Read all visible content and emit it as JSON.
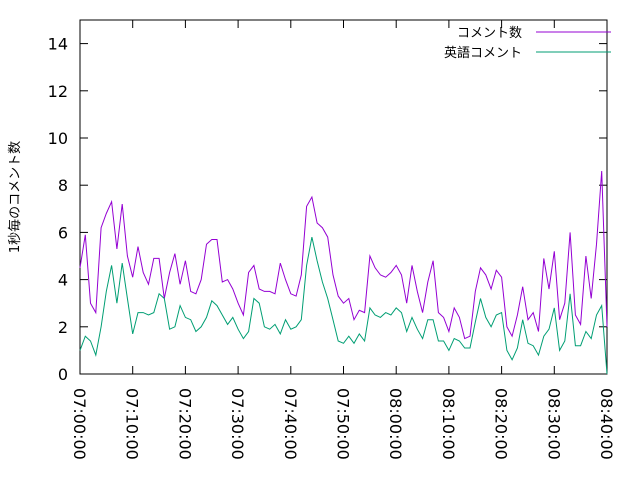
{
  "chart_data": {
    "type": "line",
    "title": "",
    "xlabel": "",
    "ylabel": "1秒毎のコメント数",
    "xlim": [
      "07:00:00",
      "08:40:00"
    ],
    "ylim": [
      0,
      15
    ],
    "x_ticks": [
      "07:00:00",
      "07:10:00",
      "07:20:00",
      "07:30:00",
      "07:40:00",
      "07:50:00",
      "08:00:00",
      "08:10:00",
      "08:20:00",
      "08:30:00",
      "08:40:00"
    ],
    "y_ticks": [
      0,
      2,
      4,
      6,
      8,
      10,
      12,
      14
    ],
    "legend_position": "top-right",
    "grid": false,
    "series": [
      {
        "name": "コメント数",
        "color": "#9400d3",
        "points": [
          [
            "07:00:00",
            4.5
          ],
          [
            "07:01:00",
            5.9
          ],
          [
            "07:02:00",
            3.0
          ],
          [
            "07:03:00",
            2.6
          ],
          [
            "07:04:00",
            6.2
          ],
          [
            "07:05:00",
            6.8
          ],
          [
            "07:06:00",
            7.3
          ],
          [
            "07:07:00",
            5.3
          ],
          [
            "07:08:00",
            7.2
          ],
          [
            "07:09:00",
            5.0
          ],
          [
            "07:10:00",
            4.1
          ],
          [
            "07:11:00",
            5.4
          ],
          [
            "07:12:00",
            4.3
          ],
          [
            "07:13:00",
            3.8
          ],
          [
            "07:14:00",
            4.9
          ],
          [
            "07:15:00",
            4.9
          ],
          [
            "07:16:00",
            3.2
          ],
          [
            "07:17:00",
            4.3
          ],
          [
            "07:18:00",
            5.1
          ],
          [
            "07:19:00",
            3.8
          ],
          [
            "07:20:00",
            4.8
          ],
          [
            "07:21:00",
            3.5
          ],
          [
            "07:22:00",
            3.4
          ],
          [
            "07:23:00",
            4.0
          ],
          [
            "07:24:00",
            5.5
          ],
          [
            "07:25:00",
            5.7
          ],
          [
            "07:26:00",
            5.7
          ],
          [
            "07:27:00",
            3.9
          ],
          [
            "07:28:00",
            4.0
          ],
          [
            "07:29:00",
            3.6
          ],
          [
            "07:30:00",
            3.0
          ],
          [
            "07:31:00",
            2.5
          ],
          [
            "07:32:00",
            4.3
          ],
          [
            "07:33:00",
            4.6
          ],
          [
            "07:34:00",
            3.6
          ],
          [
            "07:35:00",
            3.5
          ],
          [
            "07:36:00",
            3.5
          ],
          [
            "07:37:00",
            3.4
          ],
          [
            "07:38:00",
            4.7
          ],
          [
            "07:39:00",
            4.0
          ],
          [
            "07:40:00",
            3.4
          ],
          [
            "07:41:00",
            3.3
          ],
          [
            "07:42:00",
            4.2
          ],
          [
            "07:43:00",
            7.1
          ],
          [
            "07:44:00",
            7.5
          ],
          [
            "07:45:00",
            6.4
          ],
          [
            "07:46:00",
            6.2
          ],
          [
            "07:47:00",
            5.8
          ],
          [
            "07:48:00",
            4.2
          ],
          [
            "07:49:00",
            3.3
          ],
          [
            "07:50:00",
            3.0
          ],
          [
            "07:51:00",
            3.2
          ],
          [
            "07:52:00",
            2.3
          ],
          [
            "07:53:00",
            2.7
          ],
          [
            "07:54:00",
            2.6
          ],
          [
            "07:55:00",
            5.0
          ],
          [
            "07:56:00",
            4.5
          ],
          [
            "07:57:00",
            4.2
          ],
          [
            "07:58:00",
            4.1
          ],
          [
            "07:59:00",
            4.3
          ],
          [
            "08:00:00",
            4.6
          ],
          [
            "08:01:00",
            4.2
          ],
          [
            "08:02:00",
            3.0
          ],
          [
            "08:03:00",
            4.6
          ],
          [
            "08:04:00",
            3.5
          ],
          [
            "08:05:00",
            2.6
          ],
          [
            "08:06:00",
            3.9
          ],
          [
            "08:07:00",
            4.8
          ],
          [
            "08:08:00",
            2.6
          ],
          [
            "08:09:00",
            2.4
          ],
          [
            "08:10:00",
            1.8
          ],
          [
            "08:11:00",
            2.8
          ],
          [
            "08:12:00",
            2.4
          ],
          [
            "08:13:00",
            1.5
          ],
          [
            "08:14:00",
            1.6
          ],
          [
            "08:15:00",
            3.5
          ],
          [
            "08:16:00",
            4.5
          ],
          [
            "08:17:00",
            4.2
          ],
          [
            "08:18:00",
            3.6
          ],
          [
            "08:19:00",
            4.4
          ],
          [
            "08:20:00",
            4.1
          ],
          [
            "08:21:00",
            2.0
          ],
          [
            "08:22:00",
            1.6
          ],
          [
            "08:23:00",
            2.5
          ],
          [
            "08:24:00",
            3.7
          ],
          [
            "08:25:00",
            2.3
          ],
          [
            "08:26:00",
            2.6
          ],
          [
            "08:27:00",
            1.8
          ],
          [
            "08:28:00",
            4.9
          ],
          [
            "08:29:00",
            3.6
          ],
          [
            "08:30:00",
            5.2
          ],
          [
            "08:31:00",
            2.3
          ],
          [
            "08:32:00",
            3.0
          ],
          [
            "08:33:00",
            6.0
          ],
          [
            "08:34:00",
            2.5
          ],
          [
            "08:35:00",
            2.1
          ],
          [
            "08:36:00",
            5.0
          ],
          [
            "08:37:00",
            3.2
          ],
          [
            "08:38:00",
            5.5
          ],
          [
            "08:39:00",
            8.6
          ],
          [
            "08:40:00",
            2.0
          ]
        ]
      },
      {
        "name": "英語コメント",
        "color": "#009e73",
        "points": [
          [
            "07:00:00",
            1.0
          ],
          [
            "07:01:00",
            1.6
          ],
          [
            "07:02:00",
            1.4
          ],
          [
            "07:03:00",
            0.8
          ],
          [
            "07:04:00",
            2.0
          ],
          [
            "07:05:00",
            3.5
          ],
          [
            "07:06:00",
            4.6
          ],
          [
            "07:07:00",
            3.0
          ],
          [
            "07:08:00",
            4.7
          ],
          [
            "07:09:00",
            3.2
          ],
          [
            "07:10:00",
            1.7
          ],
          [
            "07:11:00",
            2.6
          ],
          [
            "07:12:00",
            2.6
          ],
          [
            "07:13:00",
            2.5
          ],
          [
            "07:14:00",
            2.6
          ],
          [
            "07:15:00",
            3.4
          ],
          [
            "07:16:00",
            3.2
          ],
          [
            "07:17:00",
            1.9
          ],
          [
            "07:18:00",
            2.0
          ],
          [
            "07:19:00",
            2.9
          ],
          [
            "07:20:00",
            2.4
          ],
          [
            "07:21:00",
            2.3
          ],
          [
            "07:22:00",
            1.8
          ],
          [
            "07:23:00",
            2.0
          ],
          [
            "07:24:00",
            2.4
          ],
          [
            "07:25:00",
            3.1
          ],
          [
            "07:26:00",
            2.9
          ],
          [
            "07:27:00",
            2.5
          ],
          [
            "07:28:00",
            2.1
          ],
          [
            "07:29:00",
            2.4
          ],
          [
            "07:30:00",
            1.9
          ],
          [
            "07:31:00",
            1.5
          ],
          [
            "07:32:00",
            1.8
          ],
          [
            "07:33:00",
            3.2
          ],
          [
            "07:34:00",
            3.0
          ],
          [
            "07:35:00",
            2.0
          ],
          [
            "07:36:00",
            1.9
          ],
          [
            "07:37:00",
            2.1
          ],
          [
            "07:38:00",
            1.7
          ],
          [
            "07:39:00",
            2.3
          ],
          [
            "07:40:00",
            1.9
          ],
          [
            "07:41:00",
            2.0
          ],
          [
            "07:42:00",
            2.3
          ],
          [
            "07:43:00",
            4.6
          ],
          [
            "07:44:00",
            5.8
          ],
          [
            "07:45:00",
            4.8
          ],
          [
            "07:46:00",
            3.9
          ],
          [
            "07:47:00",
            3.2
          ],
          [
            "07:48:00",
            2.3
          ],
          [
            "07:49:00",
            1.4
          ],
          [
            "07:50:00",
            1.3
          ],
          [
            "07:51:00",
            1.6
          ],
          [
            "07:52:00",
            1.3
          ],
          [
            "07:53:00",
            1.7
          ],
          [
            "07:54:00",
            1.4
          ],
          [
            "07:55:00",
            2.8
          ],
          [
            "07:56:00",
            2.5
          ],
          [
            "07:57:00",
            2.4
          ],
          [
            "07:58:00",
            2.6
          ],
          [
            "07:59:00",
            2.5
          ],
          [
            "08:00:00",
            2.8
          ],
          [
            "08:01:00",
            2.6
          ],
          [
            "08:02:00",
            1.8
          ],
          [
            "08:03:00",
            2.4
          ],
          [
            "08:04:00",
            1.9
          ],
          [
            "08:05:00",
            1.5
          ],
          [
            "08:06:00",
            2.3
          ],
          [
            "08:07:00",
            2.3
          ],
          [
            "08:08:00",
            1.4
          ],
          [
            "08:09:00",
            1.4
          ],
          [
            "08:10:00",
            1.0
          ],
          [
            "08:11:00",
            1.5
          ],
          [
            "08:12:00",
            1.4
          ],
          [
            "08:13:00",
            1.1
          ],
          [
            "08:14:00",
            1.1
          ],
          [
            "08:15:00",
            2.2
          ],
          [
            "08:16:00",
            3.2
          ],
          [
            "08:17:00",
            2.4
          ],
          [
            "08:18:00",
            2.0
          ],
          [
            "08:19:00",
            2.5
          ],
          [
            "08:20:00",
            2.6
          ],
          [
            "08:21:00",
            1.0
          ],
          [
            "08:22:00",
            0.6
          ],
          [
            "08:23:00",
            1.1
          ],
          [
            "08:24:00",
            2.3
          ],
          [
            "08:25:00",
            1.3
          ],
          [
            "08:26:00",
            1.2
          ],
          [
            "08:27:00",
            0.8
          ],
          [
            "08:28:00",
            1.6
          ],
          [
            "08:29:00",
            1.9
          ],
          [
            "08:30:00",
            2.8
          ],
          [
            "08:31:00",
            1.0
          ],
          [
            "08:32:00",
            1.4
          ],
          [
            "08:33:00",
            3.4
          ],
          [
            "08:34:00",
            1.2
          ],
          [
            "08:35:00",
            1.2
          ],
          [
            "08:36:00",
            1.8
          ],
          [
            "08:37:00",
            1.5
          ],
          [
            "08:38:00",
            2.5
          ],
          [
            "08:39:00",
            2.9
          ],
          [
            "08:40:00",
            0.0
          ]
        ]
      }
    ]
  }
}
